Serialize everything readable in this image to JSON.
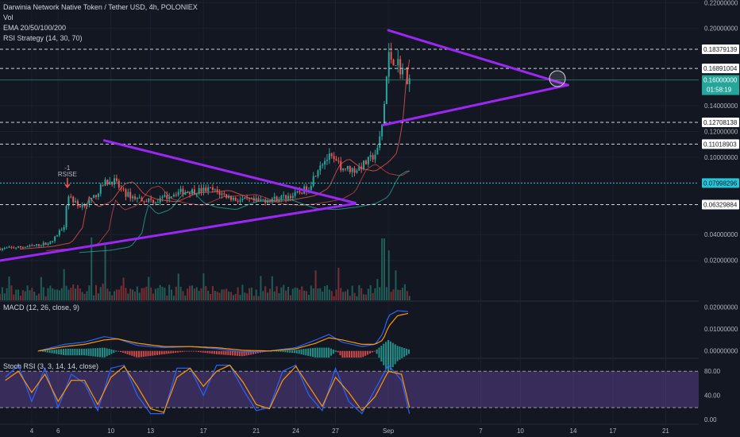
{
  "legend": {
    "title": "Darwinia Network Native Token / Tether USD, 4h, POLONIEX",
    "vol": "Vol",
    "ema": "EMA 20/50/100/200",
    "rsi_strategy": "RSI Strategy (14, 30, 70)",
    "macd": "MACD (12, 26, close, 9)",
    "stoch": "Stoch RSI (3, 3, 14, 14, close)"
  },
  "annotations": {
    "signal_count": "-1",
    "signal_label": "RSISE"
  },
  "colors": {
    "background": "#131722",
    "up": "#26a69a",
    "down": "#ef5350",
    "triangle": "#9c27f5",
    "macd_line": "#2962ff",
    "signal_line": "#ff9800",
    "stoch_band": "#7e57c2",
    "ema20": "#ef5350",
    "ema50": "#ff5252",
    "ema100": "#26a69a",
    "ema200": "#00bcd4"
  },
  "chart_data": {
    "type": "candlestick",
    "pair": "DRING/USDT",
    "interval": "4h",
    "price_axis": {
      "ticks": [
        "0.22000000",
        "0.20000000",
        "0.14000000",
        "0.12000000",
        "0.10000000",
        "0.04000000",
        "0.02000000"
      ],
      "tick_values": [
        0.22,
        0.2,
        0.14,
        0.12,
        0.1,
        0.04,
        0.02
      ],
      "range": [
        -0.003,
        0.222
      ]
    },
    "time_axis": {
      "labels": [
        "4",
        "6",
        "10",
        "13",
        "17",
        "21",
        "24",
        "27",
        "Sep",
        "7",
        "10",
        "14",
        "17",
        "21"
      ],
      "day_index": [
        4,
        6,
        10,
        13,
        17,
        21,
        24,
        27,
        31,
        38,
        41,
        45,
        48,
        52
      ],
      "range": [
        1.6,
        54.5
      ]
    },
    "horizontal_levels": [
      {
        "value": 0.18379139,
        "label": "0.18379139",
        "style": "dashed-white"
      },
      {
        "value": 0.16891004,
        "label": "0.16891004",
        "style": "dashed-white"
      },
      {
        "value": 0.12708138,
        "label": "0.12708138",
        "style": "dashed-white"
      },
      {
        "value": 0.11018903,
        "label": "0.11018903",
        "style": "dashed-white"
      },
      {
        "value": 0.07998296,
        "label": "0.07998296",
        "style": "dotted-cyan"
      },
      {
        "value": 0.06329884,
        "label": "0.06329884",
        "style": "dashed-white"
      }
    ],
    "current_price": {
      "value": 0.16,
      "label": "0.16000000",
      "countdown": "01:58:19"
    },
    "trendlines": [
      {
        "from": [
          1.6,
          0.0198
        ],
        "to": [
          28.5,
          0.064
        ]
      },
      {
        "from": [
          9.5,
          0.113
        ],
        "to": [
          28.5,
          0.0645
        ]
      },
      {
        "from": [
          31.0,
          0.1985
        ],
        "to": [
          44.6,
          0.156
        ]
      },
      {
        "from": [
          30.6,
          0.125
        ],
        "to": [
          44.6,
          0.156
        ]
      }
    ],
    "circle_marker": {
      "x": 43.8,
      "y": 0.161
    },
    "signal_marker": {
      "x": 6.7,
      "y": 0.0853
    },
    "price_key_points": [
      [
        1.6,
        0.029
      ],
      [
        4.0,
        0.031
      ],
      [
        5.5,
        0.034
      ],
      [
        6.5,
        0.048
      ],
      [
        6.7,
        0.072
      ],
      [
        7.5,
        0.062
      ],
      [
        8.5,
        0.066
      ],
      [
        9.0,
        0.073
      ],
      [
        9.5,
        0.08
      ],
      [
        10.2,
        0.082
      ],
      [
        11.0,
        0.072
      ],
      [
        12.0,
        0.068
      ],
      [
        13.5,
        0.066
      ],
      [
        15.0,
        0.073
      ],
      [
        16.5,
        0.074
      ],
      [
        17.5,
        0.075
      ],
      [
        18.5,
        0.071
      ],
      [
        19.5,
        0.067
      ],
      [
        21.0,
        0.066
      ],
      [
        22.5,
        0.068
      ],
      [
        24.0,
        0.071
      ],
      [
        25.0,
        0.077
      ],
      [
        25.8,
        0.095
      ],
      [
        26.5,
        0.1
      ],
      [
        27.5,
        0.092
      ],
      [
        28.5,
        0.09
      ],
      [
        29.5,
        0.097
      ],
      [
        30.2,
        0.105
      ],
      [
        30.6,
        0.13
      ],
      [
        31.0,
        0.178
      ],
      [
        31.5,
        0.176
      ],
      [
        32.0,
        0.168
      ],
      [
        32.6,
        0.16
      ]
    ],
    "candle_count": 180,
    "volume": {
      "max_ref": 0.066,
      "spikes": [
        [
          8.5,
          0.063
        ],
        [
          9.5,
          0.055
        ],
        [
          25.5,
          0.03
        ],
        [
          30.6,
          0.062
        ],
        [
          31.1,
          0.05
        ]
      ]
    },
    "macd": {
      "ticks": [
        "0.02000000",
        "0.01000000",
        "0.00000000"
      ],
      "tick_values": [
        0.02,
        0.01,
        0.0
      ],
      "range": [
        -0.003,
        0.023
      ],
      "line_key_points": [
        [
          4.5,
          0.0
        ],
        [
          6.5,
          0.003
        ],
        [
          8.0,
          0.004
        ],
        [
          9.5,
          0.0065
        ],
        [
          10.5,
          0.0055
        ],
        [
          12.0,
          0.0025
        ],
        [
          14.0,
          0.0015
        ],
        [
          16.0,
          0.002
        ],
        [
          18.0,
          0.001
        ],
        [
          20.0,
          -0.0005
        ],
        [
          22.0,
          0.0
        ],
        [
          24.0,
          0.0015
        ],
        [
          25.5,
          0.005
        ],
        [
          26.5,
          0.0075
        ],
        [
          27.5,
          0.004
        ],
        [
          29.0,
          0.002
        ],
        [
          30.0,
          0.003
        ],
        [
          30.6,
          0.008
        ],
        [
          31.0,
          0.016
        ],
        [
          31.7,
          0.0183
        ],
        [
          32.6,
          0.0178
        ]
      ],
      "signal_key_points": [
        [
          4.5,
          0.0
        ],
        [
          6.5,
          0.002
        ],
        [
          8.0,
          0.003
        ],
        [
          9.5,
          0.005
        ],
        [
          10.5,
          0.0055
        ],
        [
          12.0,
          0.0035
        ],
        [
          14.0,
          0.002
        ],
        [
          16.0,
          0.002
        ],
        [
          18.0,
          0.0015
        ],
        [
          20.0,
          0.0003
        ],
        [
          22.0,
          0.0
        ],
        [
          24.0,
          0.001
        ],
        [
          25.5,
          0.0035
        ],
        [
          26.5,
          0.006
        ],
        [
          27.5,
          0.005
        ],
        [
          29.0,
          0.003
        ],
        [
          30.0,
          0.003
        ],
        [
          30.6,
          0.005
        ],
        [
          31.0,
          0.011
        ],
        [
          31.7,
          0.016
        ],
        [
          32.6,
          0.0172
        ]
      ]
    },
    "stoch_rsi": {
      "ticks": [
        "80.00",
        "40.00",
        "0.00"
      ],
      "tick_values": [
        80,
        40,
        0
      ],
      "range": [
        -5,
        100
      ],
      "band": [
        20,
        80
      ],
      "line_key_points": [
        [
          2.0,
          70
        ],
        [
          3.0,
          90
        ],
        [
          4.0,
          30
        ],
        [
          5.0,
          85
        ],
        [
          6.0,
          20
        ],
        [
          7.0,
          75
        ],
        [
          8.0,
          60
        ],
        [
          9.0,
          15
        ],
        [
          10.0,
          85
        ],
        [
          11.0,
          90
        ],
        [
          12.0,
          40
        ],
        [
          13.0,
          10
        ],
        [
          14.0,
          10
        ],
        [
          15.0,
          85
        ],
        [
          16.0,
          85
        ],
        [
          17.0,
          40
        ],
        [
          18.0,
          90
        ],
        [
          19.0,
          90
        ],
        [
          20.0,
          50
        ],
        [
          21.0,
          15
        ],
        [
          22.0,
          20
        ],
        [
          23.0,
          80
        ],
        [
          24.0,
          90
        ],
        [
          25.0,
          40
        ],
        [
          26.0,
          15
        ],
        [
          27.0,
          85
        ],
        [
          28.0,
          30
        ],
        [
          29.0,
          10
        ],
        [
          30.0,
          50
        ],
        [
          31.0,
          90
        ],
        [
          32.0,
          65
        ],
        [
          32.6,
          10
        ]
      ],
      "signal_key_points": [
        [
          2.0,
          65
        ],
        [
          3.0,
          80
        ],
        [
          4.0,
          45
        ],
        [
          5.0,
          75
        ],
        [
          6.0,
          30
        ],
        [
          7.0,
          65
        ],
        [
          8.0,
          65
        ],
        [
          9.0,
          25
        ],
        [
          10.0,
          70
        ],
        [
          11.0,
          88
        ],
        [
          12.0,
          55
        ],
        [
          13.0,
          18
        ],
        [
          14.0,
          12
        ],
        [
          15.0,
          70
        ],
        [
          16.0,
          85
        ],
        [
          17.0,
          55
        ],
        [
          18.0,
          80
        ],
        [
          19.0,
          90
        ],
        [
          20.0,
          62
        ],
        [
          21.0,
          25
        ],
        [
          22.0,
          18
        ],
        [
          23.0,
          65
        ],
        [
          24.0,
          88
        ],
        [
          25.0,
          55
        ],
        [
          26.0,
          22
        ],
        [
          27.0,
          70
        ],
        [
          28.0,
          45
        ],
        [
          29.0,
          15
        ],
        [
          30.0,
          38
        ],
        [
          31.0,
          80
        ],
        [
          32.0,
          75
        ],
        [
          32.6,
          20
        ]
      ]
    }
  }
}
